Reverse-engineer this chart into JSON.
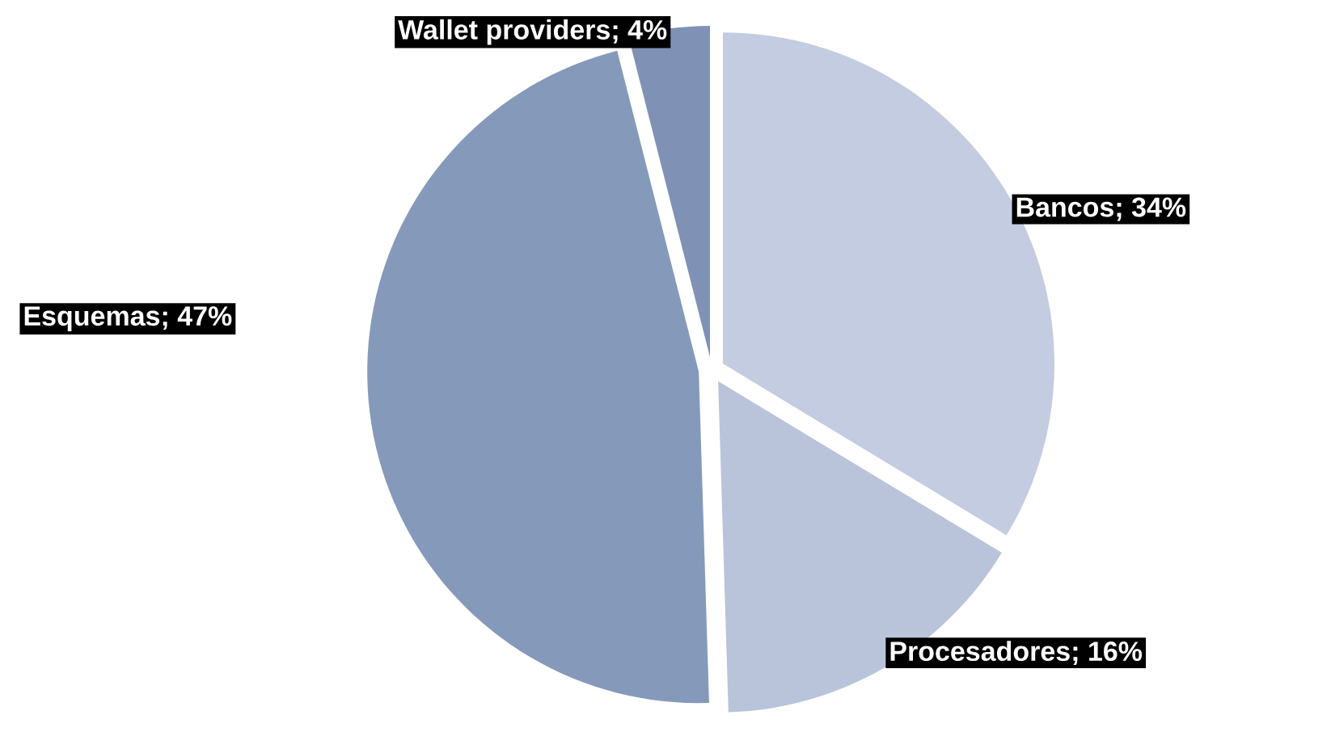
{
  "chart_data": {
    "type": "pie",
    "categories": [
      "Bancos",
      "Procesadores",
      "Esquemas",
      "Wallet providers"
    ],
    "values": [
      34,
      16,
      47,
      4
    ],
    "value_labels": [
      "; 34%",
      "; 16%",
      "; 47%",
      "; 4%"
    ],
    "colors": [
      "#c3cce0",
      "#b9c4da",
      "#8599bb",
      "#7f92b6"
    ]
  }
}
